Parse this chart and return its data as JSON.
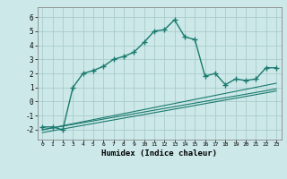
{
  "xlabel": "Humidex (Indice chaleur)",
  "bg_color": "#cce8e8",
  "grid_color": "#aacccc",
  "line_color": "#1a7a6e",
  "xlim": [
    -0.5,
    23.5
  ],
  "ylim": [
    -2.7,
    6.7
  ],
  "xticks": [
    0,
    1,
    2,
    3,
    4,
    5,
    6,
    7,
    8,
    9,
    10,
    11,
    12,
    13,
    14,
    15,
    16,
    17,
    18,
    19,
    20,
    21,
    22,
    23
  ],
  "yticks": [
    -2,
    -1,
    0,
    1,
    2,
    3,
    4,
    5,
    6
  ],
  "main_x": [
    0,
    1,
    2,
    3,
    4,
    5,
    6,
    7,
    8,
    9,
    10,
    11,
    12,
    13,
    14,
    15,
    16,
    17,
    18,
    19,
    20,
    21,
    22,
    23
  ],
  "main_y": [
    -1.8,
    -1.8,
    -2.0,
    1.0,
    2.0,
    2.2,
    2.5,
    3.0,
    3.2,
    3.5,
    4.2,
    5.0,
    5.1,
    5.8,
    4.6,
    4.4,
    1.8,
    2.0,
    1.2,
    1.6,
    1.5,
    1.6,
    2.4,
    2.4
  ],
  "line2_x": [
    0,
    23
  ],
  "line2_y": [
    -2.0,
    1.3
  ],
  "line3_x": [
    0,
    23
  ],
  "line3_y": [
    -2.0,
    0.9
  ],
  "line4_x": [
    0,
    23
  ],
  "line4_y": [
    -2.2,
    0.75
  ]
}
